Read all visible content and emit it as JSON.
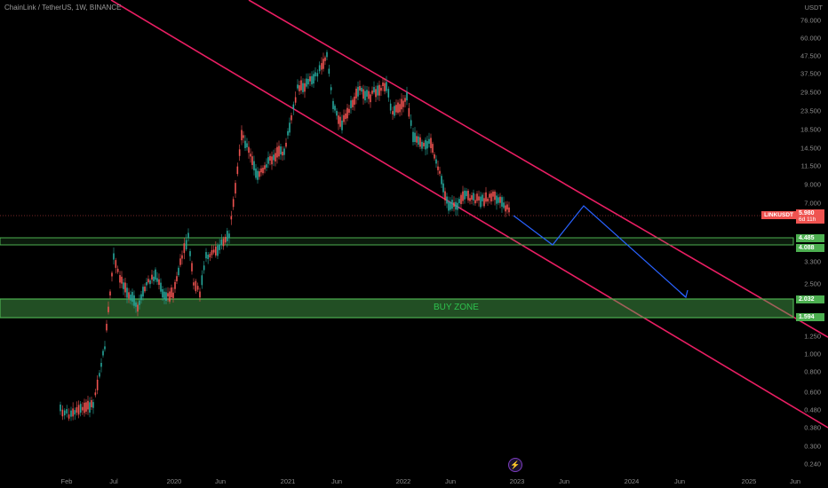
{
  "header": {
    "title": "ChainLink / TetherUS, 1W, BINANCE"
  },
  "yaxis": {
    "currency": "USDT",
    "ticks": [
      "76.000",
      "60.000",
      "47.500",
      "37.500",
      "29.500",
      "23.500",
      "18.500",
      "14.500",
      "11.500",
      "9.000",
      "7.000",
      "3.300",
      "2.500",
      "1.250",
      "1.000",
      "0.800",
      "0.600",
      "0.480",
      "0.380",
      "0.300",
      "0.240"
    ]
  },
  "xaxis": {
    "ticks": [
      "Feb",
      "Jul",
      "2020",
      "Jun",
      "2021",
      "Jun",
      "2022",
      "Jun",
      "2023",
      "Jun",
      "2024",
      "Jun",
      "2025",
      "Jun"
    ]
  },
  "price": {
    "symbol": "LINKUSDT",
    "value": "5.980",
    "countdown": "6d 11h"
  },
  "levels": {
    "upper_top": "4.485",
    "upper_bottom": "4.088",
    "zone_top": "2.032",
    "zone_bottom": "1.594"
  },
  "zone_label": "BUY ZONE",
  "colors": {
    "bg": "#000000",
    "up": "#26a69a",
    "down": "#ef5350",
    "channel": "#e91e63",
    "zone": "#4caf50",
    "projection": "#2962ff"
  },
  "icons": {
    "tv_icon": "lightning-icon"
  }
}
